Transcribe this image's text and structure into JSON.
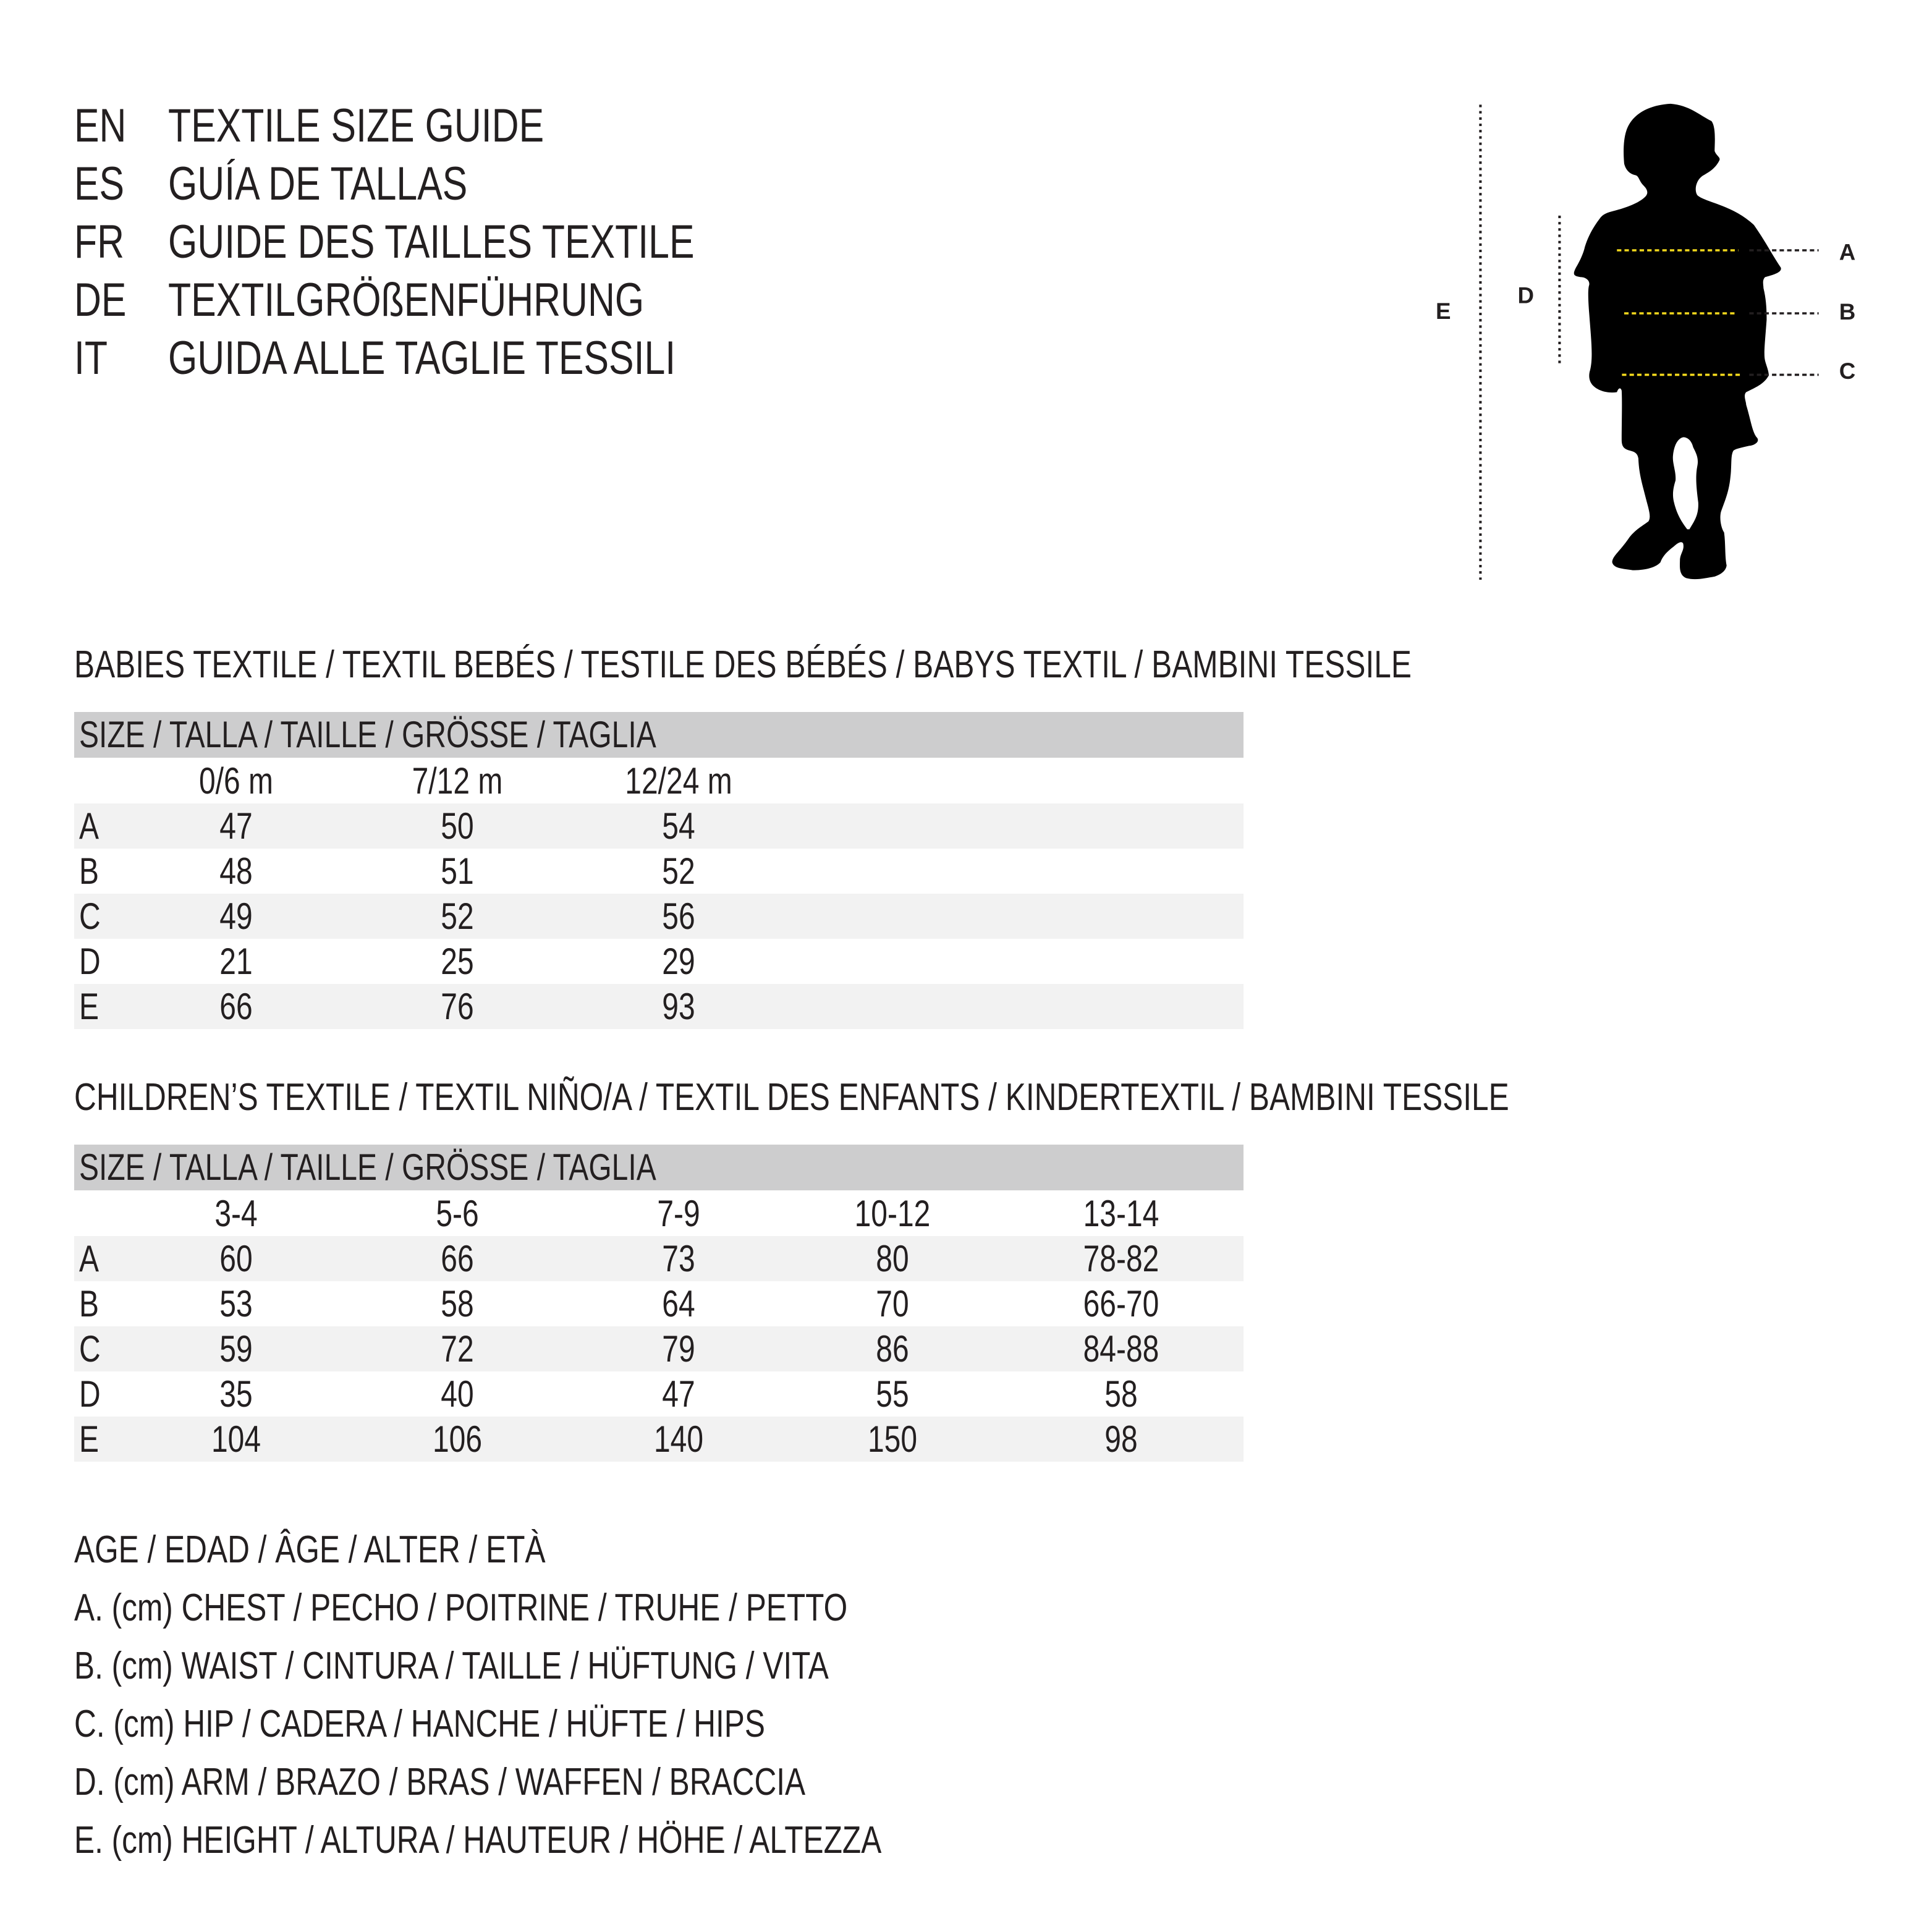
{
  "guide_titles": [
    {
      "code": "EN",
      "text": "TEXTILE SIZE GUIDE"
    },
    {
      "code": "ES",
      "text": "GUÍA DE TALLAS"
    },
    {
      "code": "FR",
      "text": "GUIDE DES TAILLES TEXTILE"
    },
    {
      "code": "DE",
      "text": "TEXTILGRÖßENFÜHRUNG"
    },
    {
      "code": "IT",
      "text": "GUIDA ALLE TAGLIE TESSILI"
    }
  ],
  "babies": {
    "title": "BABIES TEXTILE / TEXTIL BEBÉS / TESTILE DES BÉBÉS / BABYS TEXTIL / BAMBINI TESSILE",
    "size_header": "SIZE / TALLA / TAILLE / GRÖSSE / TAGLIA",
    "columns": [
      "0/6 m",
      "7/12 m",
      "12/24 m"
    ],
    "rows": [
      {
        "label": "A",
        "values": [
          "47",
          "50",
          "54"
        ]
      },
      {
        "label": "B",
        "values": [
          "48",
          "51",
          "52"
        ]
      },
      {
        "label": "C",
        "values": [
          "49",
          "52",
          "56"
        ]
      },
      {
        "label": "D",
        "values": [
          "21",
          "25",
          "29"
        ]
      },
      {
        "label": "E",
        "values": [
          "66",
          "76",
          "93"
        ]
      }
    ]
  },
  "children": {
    "title": "CHILDREN’S TEXTILE / TEXTIL NIÑO/A / TEXTIL DES ENFANTS / KINDERTEXTIL / BAMBINI TESSILE",
    "size_header": "SIZE / TALLA / TAILLE / GRÖSSE / TAGLIA",
    "columns": [
      "3-4",
      "5-6",
      "7-9",
      "10-12",
      "13-14"
    ],
    "rows": [
      {
        "label": "A",
        "values": [
          "60",
          "66",
          "73",
          "80",
          "78-82"
        ]
      },
      {
        "label": "B",
        "values": [
          "53",
          "58",
          "64",
          "70",
          "66-70"
        ]
      },
      {
        "label": "C",
        "values": [
          "59",
          "72",
          "79",
          "86",
          "84-88"
        ]
      },
      {
        "label": "D",
        "values": [
          "35",
          "40",
          "47",
          "55",
          "58"
        ]
      },
      {
        "label": "E",
        "values": [
          "104",
          "106",
          "140",
          "150",
          "98"
        ]
      }
    ]
  },
  "legend": [
    "AGE / EDAD / ÂGE / ALTER / ETÀ",
    "A. (cm) CHEST / PECHO / POITRINE / TRUHE / PETTO",
    "B. (cm) WAIST / CINTURA / TAILLE / HÜFTUNG / VITA",
    "C. (cm) HIP / CADERA / HANCHE / HÜFTE / HIPS",
    "D. (cm) ARM / BRAZO / BRAS / WAFFEN / BRACCIA",
    "E. (cm) HEIGHT / ALTURA / HAUTEUR / HÖHE / ALTEZZA"
  ],
  "figure": {
    "labels": {
      "a": "A",
      "b": "B",
      "c": "C",
      "d": "D",
      "e": "E"
    },
    "colors": {
      "silhouette": "#000000",
      "measure_line": "#f2d81c",
      "guide_line": "#231f20",
      "header_bar": "#cdcdce",
      "row_stripe": "#f2f2f2"
    }
  }
}
